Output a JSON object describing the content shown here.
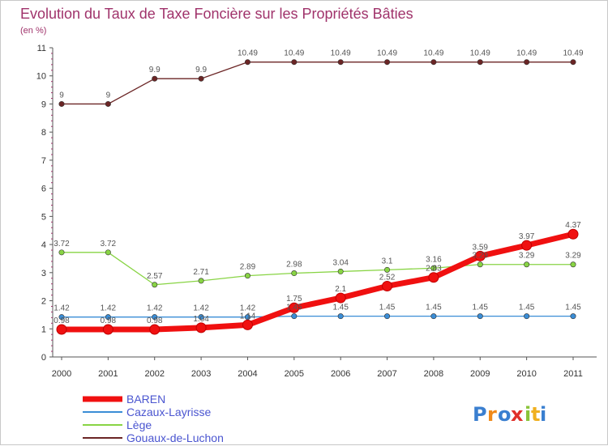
{
  "chart_data": {
    "type": "line",
    "title": "Evolution du Taux de Taxe Foncière sur les Propriétés Bâties",
    "subtitle": "(en %)",
    "xlabel": "",
    "ylabel": "",
    "ylim": [
      0,
      11
    ],
    "yticks": [
      "0",
      "1",
      "2",
      "3",
      "4",
      "5",
      "6",
      "7",
      "8",
      "9",
      "10",
      "11"
    ],
    "categories": [
      "2000",
      "2001",
      "2002",
      "2003",
      "2004",
      "2005",
      "2006",
      "2007",
      "2008",
      "2009",
      "2010",
      "2011"
    ],
    "series": [
      {
        "name": "Gouaux-de-Luchon",
        "color": "#6b2525",
        "values": [
          9,
          9,
          9.9,
          9.9,
          10.49,
          10.49,
          10.49,
          10.49,
          10.49,
          10.49,
          10.49,
          10.49
        ],
        "labels": [
          "9",
          "9",
          "9.9",
          "9.9",
          "10.49",
          "10.49",
          "10.49",
          "10.49",
          "10.49",
          "10.49",
          "10.49",
          "10.49"
        ]
      },
      {
        "name": "Lège",
        "color": "#88d444",
        "values": [
          3.72,
          3.72,
          2.57,
          2.71,
          2.89,
          2.98,
          3.04,
          3.1,
          3.16,
          3.29,
          3.29,
          3.29
        ],
        "labels": [
          "3.72",
          "3.72",
          "2.57",
          "2.71",
          "2.89",
          "2.98",
          "3.04",
          "3.1",
          "3.16",
          "3.29",
          "3.29",
          "3.29"
        ]
      },
      {
        "name": "Cazaux-Layrisse",
        "color": "#3a8dd6",
        "values": [
          1.42,
          1.42,
          1.42,
          1.42,
          1.42,
          1.45,
          1.45,
          1.45,
          1.45,
          1.45,
          1.45,
          1.45
        ],
        "labels": [
          "1.42",
          "1.42",
          "1.42",
          "1.42",
          "1.42",
          "1.45",
          "1.45",
          "1.45",
          "1.45",
          "1.45",
          "1.45",
          "1.45"
        ]
      },
      {
        "name": "BAREN",
        "color": "#f01010",
        "values": [
          0.98,
          0.98,
          0.98,
          1.04,
          1.14,
          1.75,
          2.1,
          2.52,
          2.83,
          3.59,
          3.97,
          4.37
        ],
        "labels": [
          "0.98",
          "0.98",
          "0.98",
          "1.04",
          "1.14",
          "1.75",
          "2.1",
          "2.52",
          "2.83",
          "3.59",
          "3.97",
          "4.37"
        ]
      }
    ],
    "legend": {
      "position": "bottom-left",
      "entries": [
        "BAREN",
        "Cazaux-Layrisse",
        "Lège",
        "Gouaux-de-Luchon"
      ]
    }
  },
  "logo": {
    "text": "Proxiti",
    "letters": [
      "P",
      "r",
      "o",
      "x",
      "i",
      "t",
      "i"
    ],
    "colors": [
      "#3a7fd0",
      "#f08a1a",
      "#3a7fd0",
      "#e0302a",
      "#8ac43a",
      "#f0b020",
      "#3a7fd0"
    ]
  }
}
